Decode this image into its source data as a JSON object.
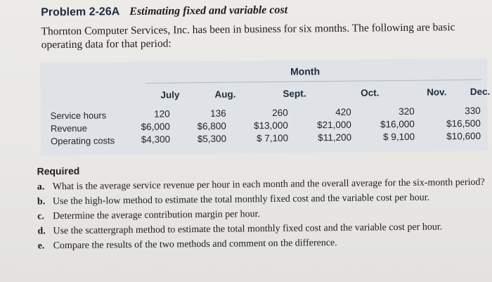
{
  "problem": {
    "number": "Problem 2-26A",
    "title": "Estimating fixed and variable cost",
    "intro": "Thornton Computer Services, Inc. has been in business for six months. The following are basic operating data for that period:"
  },
  "table": {
    "group_header": "Month",
    "months": [
      "July",
      "Aug.",
      "Sept.",
      "Oct.",
      "Nov.",
      "Dec."
    ],
    "rows": [
      {
        "label": "Service hours",
        "values": [
          "120",
          "136",
          "260",
          "420",
          "320",
          "330"
        ]
      },
      {
        "label": "Revenue",
        "values": [
          "$6,000",
          "$6,800",
          "$13,000",
          "$21,000",
          "$16,000",
          "$16,500"
        ]
      },
      {
        "label": "Operating costs",
        "values": [
          "$4,300",
          "$5,300",
          "$ 7,100",
          "$11,200",
          "$ 9,100",
          "$10,600"
        ]
      }
    ]
  },
  "required": {
    "title": "Required",
    "items": [
      {
        "letter": "a.",
        "text": "What is the average service revenue per hour in each month and the overall average for the six-month period?"
      },
      {
        "letter": "b.",
        "text": "Use the high-low method to estimate the total monthly fixed cost and the variable cost per hour."
      },
      {
        "letter": "c.",
        "text": "Determine the average contribution margin per hour."
      },
      {
        "letter": "d.",
        "text": "Use the scattergraph method to estimate the total monthly fixed cost and the variable cost per hour."
      },
      {
        "letter": "e.",
        "text": "Compare the results of the two methods and comment on the difference."
      }
    ]
  }
}
